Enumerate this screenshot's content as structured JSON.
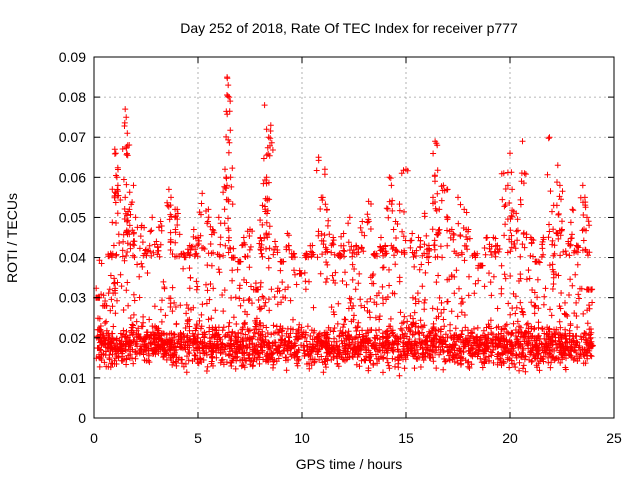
{
  "chart_data": {
    "type": "scatter",
    "title": "Day 252 of 2018, Rate Of TEC Index for receiver p777",
    "xlabel": "GPS time / hours",
    "ylabel": "ROTI / TECUs",
    "xlim": [
      0,
      25
    ],
    "ylim": [
      0,
      0.09
    ],
    "xticks": [
      "0",
      "5",
      "10",
      "15",
      "20",
      "25"
    ],
    "yticks": [
      "0",
      "0.01",
      "0.02",
      "0.03",
      "0.04",
      "0.05",
      "0.06",
      "0.07",
      "0.08",
      "0.09"
    ],
    "grid": true,
    "marker": "+",
    "series": [
      {
        "name": "ROTI",
        "color": "#ff0000",
        "description_of_density": "dense band of several thousand points between 0.005 and 0.045 across 0-24 h",
        "points": [
          [
            0.2,
            0.03
          ],
          [
            0.3,
            0.022
          ],
          [
            0.5,
            0.028
          ],
          [
            0.8,
            0.041
          ],
          [
            1.0,
            0.067
          ],
          [
            1.05,
            0.066
          ],
          [
            1.1,
            0.06
          ],
          [
            1.15,
            0.058
          ],
          [
            1.5,
            0.077
          ],
          [
            1.55,
            0.075
          ],
          [
            1.6,
            0.071
          ],
          [
            1.62,
            0.068
          ],
          [
            1.5,
            0.055
          ],
          [
            1.7,
            0.052
          ],
          [
            1.9,
            0.058
          ],
          [
            2.0,
            0.05
          ],
          [
            2.3,
            0.048
          ],
          [
            2.5,
            0.042
          ],
          [
            2.8,
            0.05
          ],
          [
            3.0,
            0.044
          ],
          [
            3.2,
            0.049
          ],
          [
            3.6,
            0.057
          ],
          [
            3.7,
            0.055
          ],
          [
            3.9,
            0.052
          ],
          [
            4.0,
            0.052
          ],
          [
            4.3,
            0.041
          ],
          [
            4.6,
            0.043
          ],
          [
            4.8,
            0.047
          ],
          [
            5.0,
            0.045
          ],
          [
            5.2,
            0.056
          ],
          [
            5.5,
            0.052
          ],
          [
            5.7,
            0.047
          ],
          [
            6.0,
            0.05
          ],
          [
            6.3,
            0.062
          ],
          [
            6.35,
            0.06
          ],
          [
            6.4,
            0.085
          ],
          [
            6.45,
            0.083
          ],
          [
            6.5,
            0.08
          ],
          [
            6.55,
            0.079
          ],
          [
            6.7,
            0.04
          ],
          [
            7.0,
            0.039
          ],
          [
            7.2,
            0.045
          ],
          [
            7.5,
            0.047
          ],
          [
            7.8,
            0.032
          ],
          [
            8.0,
            0.045
          ],
          [
            8.2,
            0.078
          ],
          [
            8.3,
            0.072
          ],
          [
            8.4,
            0.07
          ],
          [
            8.5,
            0.073
          ],
          [
            8.3,
            0.06
          ],
          [
            8.1,
            0.053
          ],
          [
            8.7,
            0.044
          ],
          [
            9.0,
            0.039
          ],
          [
            9.3,
            0.046
          ],
          [
            9.6,
            0.041
          ],
          [
            9.9,
            0.036
          ],
          [
            10.2,
            0.041
          ],
          [
            10.5,
            0.043
          ],
          [
            10.8,
            0.065
          ],
          [
            11.0,
            0.055
          ],
          [
            11.1,
            0.062
          ],
          [
            11.2,
            0.052
          ],
          [
            11.5,
            0.045
          ],
          [
            11.8,
            0.041
          ],
          [
            12.0,
            0.046
          ],
          [
            12.3,
            0.05
          ],
          [
            12.6,
            0.043
          ],
          [
            12.9,
            0.049
          ],
          [
            13.2,
            0.054
          ],
          [
            13.5,
            0.041
          ],
          [
            13.8,
            0.045
          ],
          [
            14.0,
            0.043
          ],
          [
            14.2,
            0.06
          ],
          [
            14.3,
            0.058
          ],
          [
            14.5,
            0.049
          ],
          [
            14.8,
            0.061
          ],
          [
            15.0,
            0.062
          ],
          [
            15.3,
            0.046
          ],
          [
            15.6,
            0.045
          ],
          [
            15.9,
            0.051
          ],
          [
            16.1,
            0.043
          ],
          [
            16.4,
            0.069
          ],
          [
            16.5,
            0.068
          ],
          [
            16.3,
            0.055
          ],
          [
            16.6,
            0.052
          ],
          [
            16.8,
            0.058
          ],
          [
            17.0,
            0.057
          ],
          [
            17.2,
            0.047
          ],
          [
            17.5,
            0.055
          ],
          [
            17.8,
            0.052
          ],
          [
            18.0,
            0.047
          ],
          [
            18.3,
            0.041
          ],
          [
            18.6,
            0.038
          ],
          [
            18.9,
            0.045
          ],
          [
            19.2,
            0.045
          ],
          [
            19.4,
            0.043
          ],
          [
            19.7,
            0.061
          ],
          [
            19.9,
            0.058
          ],
          [
            20.0,
            0.066
          ],
          [
            20.1,
            0.057
          ],
          [
            20.3,
            0.051
          ],
          [
            20.6,
            0.069
          ],
          [
            20.7,
            0.061
          ],
          [
            21.0,
            0.045
          ],
          [
            21.3,
            0.039
          ],
          [
            21.6,
            0.045
          ],
          [
            21.9,
            0.07
          ],
          [
            22.1,
            0.053
          ],
          [
            22.3,
            0.063
          ],
          [
            22.4,
            0.058
          ],
          [
            22.5,
            0.047
          ],
          [
            22.8,
            0.044
          ],
          [
            23.0,
            0.052
          ],
          [
            23.2,
            0.043
          ],
          [
            23.5,
            0.058
          ],
          [
            23.6,
            0.055
          ],
          [
            23.7,
            0.05
          ],
          [
            23.8,
            0.032
          ],
          [
            23.9,
            0.018
          ]
        ],
        "band": {
          "x_start": 0.0,
          "x_end": 23.95,
          "y_low": 0.005,
          "y_high": 0.045,
          "y_center": 0.018
        }
      }
    ]
  }
}
